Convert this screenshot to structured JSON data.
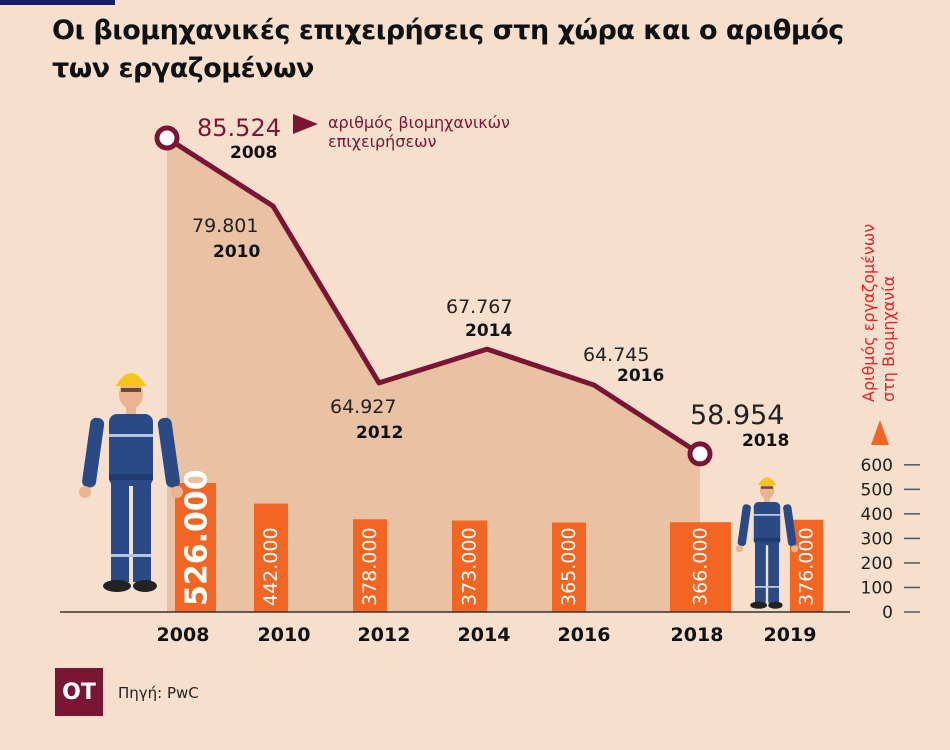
{
  "title": "Οι βιομηχανικές επιχειρήσεις στη χώρα και ο αριθμός των εργαζομένων",
  "source": "Πηγή: PwC",
  "logo": "OT",
  "colors": {
    "line": "#7a1535",
    "bars": "#f26522",
    "area": "#e8c2a2",
    "background": "#f6e0cd",
    "axis_label": "#e8202a"
  },
  "chart_data": {
    "type": "bar+line",
    "line_series": {
      "name": "αριθμός βιομηχανικών επιχειρήσεων",
      "x": [
        "2008",
        "2010",
        "2012",
        "2014",
        "2016",
        "2018"
      ],
      "values": [
        85524,
        79801,
        64927,
        67767,
        64745,
        58954
      ],
      "labels": [
        "85.524",
        "79.801",
        "64.927",
        "67.767",
        "64.745",
        "58.954"
      ]
    },
    "bar_series": {
      "name": "Αριθμός εργαζομένων στη Βιομηχανία",
      "categories": [
        "2008",
        "2010",
        "2012",
        "2014",
        "2016",
        "2018",
        "2019"
      ],
      "values": [
        526,
        442,
        378,
        373,
        365,
        366,
        376
      ],
      "labels": [
        "526.000",
        "442.000",
        "378.000",
        "373.000",
        "365.000",
        "366.000",
        "376.000"
      ]
    },
    "legend_line": [
      "αριθμός βιομηχανικών",
      "επιχειρήσεων"
    ],
    "right_axis_label": [
      "Αριθμός εργαζομένων",
      "στη Βιομηχανία"
    ],
    "right_axis_ticks": [
      0,
      100,
      200,
      300,
      400,
      500,
      600
    ],
    "ylim_bars": [
      0,
      600
    ]
  }
}
